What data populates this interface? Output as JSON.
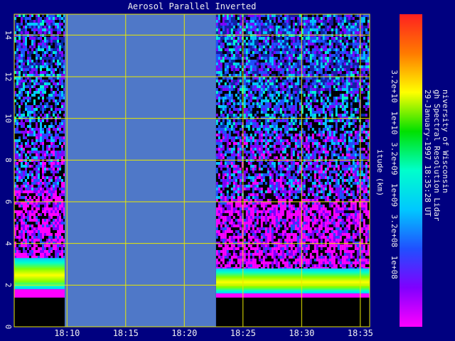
{
  "chart_data": {
    "type": "heatmap",
    "title": "Aerosol Parallel Inverted",
    "ylabel": "itude (km)",
    "x_tick_labels": [
      "18:10",
      "18:15",
      "18:20",
      "18:25",
      "18:30",
      "18:35"
    ],
    "x_ticks_minutes_after_18": [
      10,
      15,
      20,
      25,
      30,
      35
    ],
    "xlim_minutes_after_18": [
      5.5,
      35.8
    ],
    "y_ticks": [
      0,
      2,
      4,
      6,
      8,
      10,
      12,
      14
    ],
    "ylim": [
      0,
      15
    ],
    "grid": true,
    "no_data_gap_minutes_after_18": [
      9.8,
      22.7
    ],
    "aerosol_layer": {
      "before_gap": {
        "base_km": 1.8,
        "top_km": 3.3
      },
      "after_gap": {
        "base_km": 1.6,
        "top_km": 2.8
      }
    },
    "ground_black_below_km": 1.4,
    "colorbar": {
      "tick_labels": [
        "3.2e+10",
        "1e+10",
        "3.2e+09",
        "1e+09",
        "3.2e+08",
        "1e+08"
      ],
      "tick_values": [
        32000000000.0,
        10000000000.0,
        3200000000.0,
        1000000000.0,
        320000000.0,
        100000000.0
      ],
      "colors_top_to_bottom": [
        "#ff2020",
        "#ff7a00",
        "#ffff00",
        "#00e000",
        "#00ffcc",
        "#00c8ff",
        "#2050ff",
        "#8000ff",
        "#ff00ff"
      ]
    },
    "info_lines": [
      "niversity of Wisconsin",
      "gh Spectral Resolution Lidar",
      "29-January-1997 18:35:28 UT"
    ]
  },
  "colors": {
    "background": "#000080",
    "gap": "#4f78c8",
    "grid": "#e8e800",
    "ground": "#000000"
  }
}
